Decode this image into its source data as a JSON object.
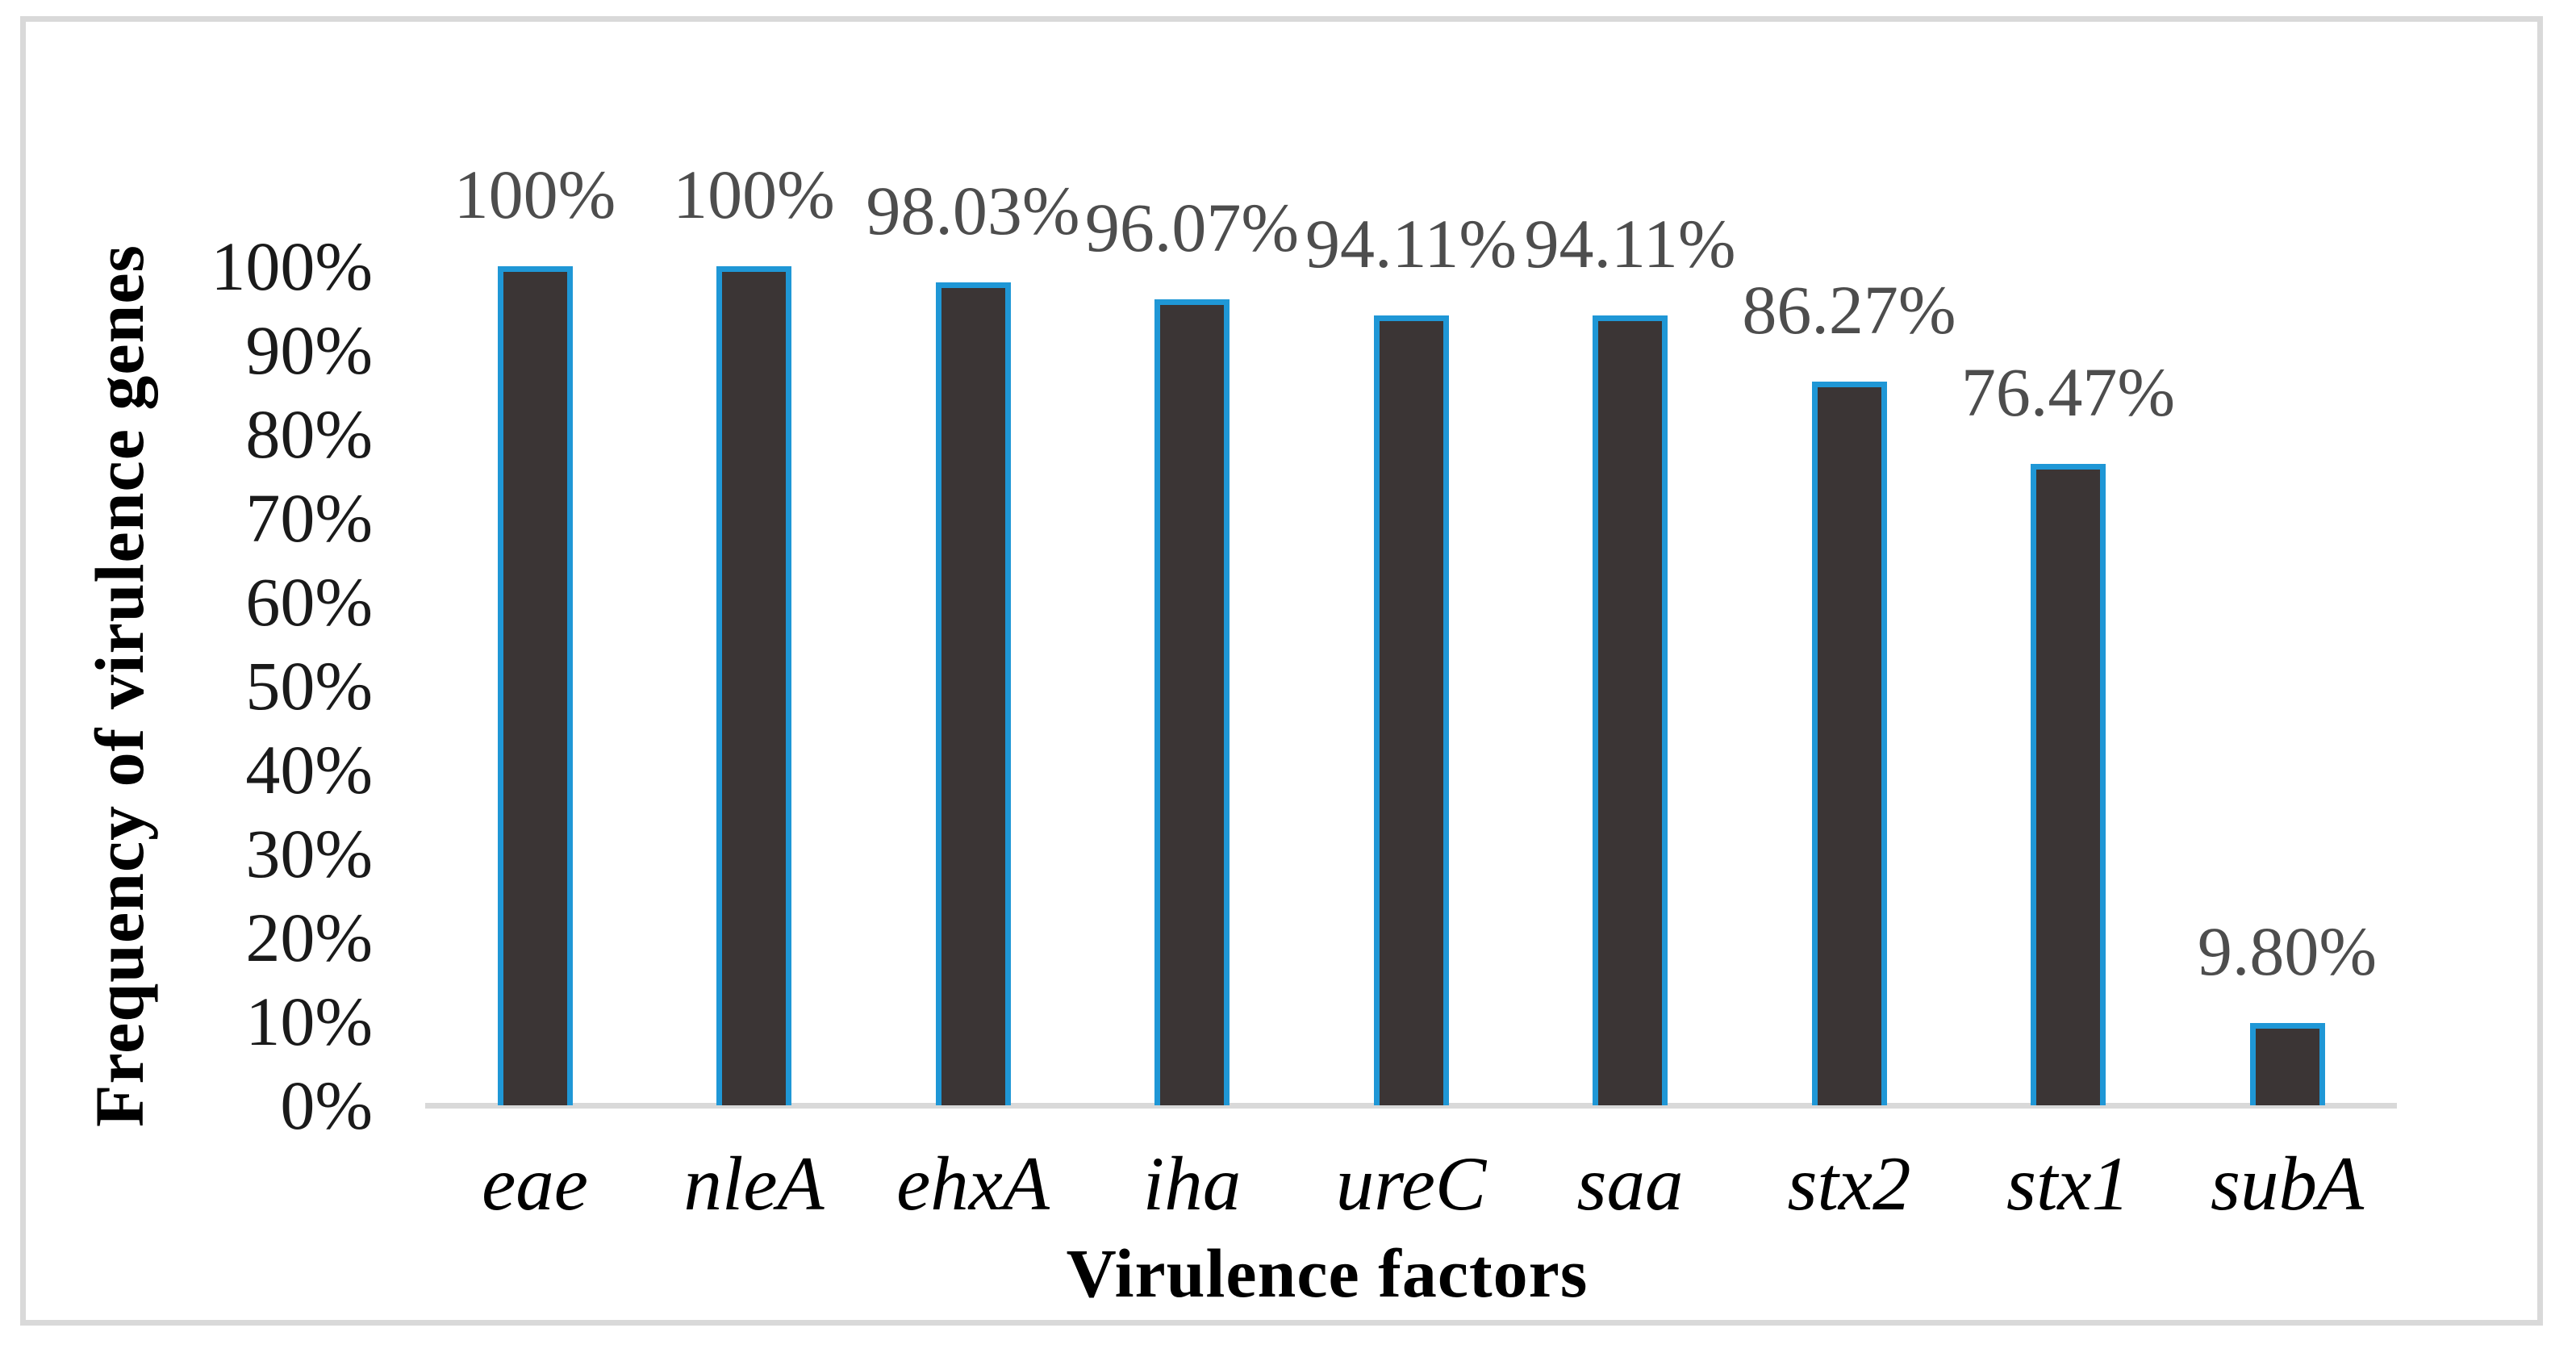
{
  "chart_data": {
    "type": "bar",
    "title": "",
    "xlabel": "Virulence factors",
    "ylabel": "Frequency of virulence genes",
    "categories": [
      "eae",
      "nleA",
      "ehxA",
      "iha",
      "ureC",
      "saa",
      "stx2",
      "stx1",
      "subA"
    ],
    "values": [
      100,
      100,
      98.03,
      96.07,
      94.11,
      94.11,
      86.27,
      76.47,
      9.8
    ],
    "bar_labels": [
      "100%",
      "100%",
      "98.03%",
      "96.07%",
      "94.11%",
      "94.11%",
      "86.27%",
      "76.47%",
      "9.80%"
    ],
    "ytick_labels": [
      "0%",
      "10%",
      "20%",
      "30%",
      "40%",
      "50%",
      "60%",
      "70%",
      "80%",
      "90%",
      "100%"
    ],
    "ylim": [
      0,
      100
    ],
    "ytick_step": 10,
    "grid": false,
    "legend_position": "none",
    "colors": {
      "bar_fill": "#3b3535",
      "bar_border": "#1f97d6",
      "axis_line": "#d9d9d9",
      "figure_border": "#d9d9d9",
      "data_label": "#4d4d4d",
      "tick_label": "#1a1a1a",
      "title_text": "#000000",
      "background": "#ffffff"
    }
  }
}
